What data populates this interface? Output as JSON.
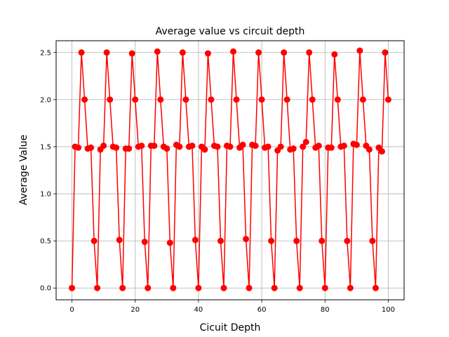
{
  "chart_data": {
    "type": "line",
    "title": "Average value vs circuit depth",
    "xlabel": "Cicuit Depth",
    "ylabel": "Average Value",
    "xlim": [
      -5,
      105
    ],
    "ylim": [
      -0.125,
      2.625
    ],
    "xticks": [
      0,
      20,
      40,
      60,
      80,
      100
    ],
    "yticks": [
      0.0,
      0.5,
      1.0,
      1.5,
      2.0,
      2.5
    ],
    "xtick_labels": [
      "0",
      "20",
      "40",
      "60",
      "80",
      "100"
    ],
    "ytick_labels": [
      "0.0",
      "0.5",
      "1.0",
      "1.5",
      "2.0",
      "2.5"
    ],
    "grid": true,
    "series": [
      {
        "color": "#ff0000",
        "marker": "circle",
        "x": [
          0,
          1,
          2,
          3,
          4,
          5,
          6,
          7,
          8,
          9,
          10,
          11,
          12,
          13,
          14,
          15,
          16,
          17,
          18,
          19,
          20,
          21,
          22,
          23,
          24,
          25,
          26,
          27,
          28,
          29,
          30,
          31,
          32,
          33,
          34,
          35,
          36,
          37,
          38,
          39,
          40,
          41,
          42,
          43,
          44,
          45,
          46,
          47,
          48,
          49,
          50,
          51,
          52,
          53,
          54,
          55,
          56,
          57,
          58,
          59,
          60,
          61,
          62,
          63,
          64,
          65,
          66,
          67,
          68,
          69,
          70,
          71,
          72,
          73,
          74,
          75,
          76,
          77,
          78,
          79,
          80,
          81,
          82,
          83,
          84,
          85,
          86,
          87,
          88,
          89,
          90,
          91,
          92,
          93,
          94,
          95,
          96,
          97,
          98,
          99,
          100
        ],
        "y": [
          0,
          1.5,
          1.49,
          2.5,
          2.0,
          1.48,
          1.49,
          0.5,
          0,
          1.47,
          1.51,
          2.5,
          2.0,
          1.5,
          1.49,
          0.51,
          0,
          1.48,
          1.48,
          2.49,
          2.0,
          1.5,
          1.51,
          0.49,
          0,
          1.51,
          1.51,
          2.51,
          2.0,
          1.5,
          1.48,
          0.48,
          0,
          1.52,
          1.5,
          2.5,
          2.0,
          1.5,
          1.51,
          0.51,
          0,
          1.5,
          1.47,
          2.49,
          2.0,
          1.51,
          1.5,
          0.5,
          0,
          1.51,
          1.5,
          2.51,
          2.0,
          1.49,
          1.52,
          0.52,
          0,
          1.52,
          1.51,
          2.5,
          2.0,
          1.49,
          1.5,
          0.5,
          0,
          1.46,
          1.5,
          2.5,
          2.0,
          1.47,
          1.48,
          0.5,
          0,
          1.5,
          1.55,
          2.5,
          2.0,
          1.49,
          1.51,
          0.5,
          0,
          1.49,
          1.49,
          2.48,
          2.0,
          1.5,
          1.51,
          0.5,
          0,
          1.53,
          1.52,
          2.52,
          2.0,
          1.51,
          1.47,
          0.5,
          0,
          1.49,
          1.45,
          2.5,
          2.0
        ]
      }
    ]
  }
}
